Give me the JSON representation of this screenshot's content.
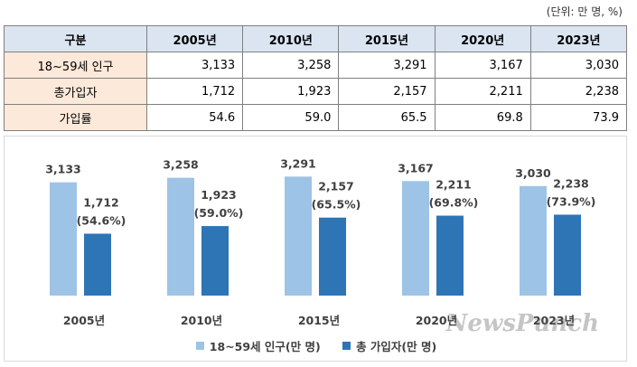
{
  "unit_note": "(단위: 만 명, %)",
  "table": {
    "header": [
      "구분",
      "2005년",
      "2010년",
      "2015년",
      "2020년",
      "2023년"
    ],
    "rows": [
      {
        "label": "18~59세 인구",
        "values": [
          "3,133",
          "3,258",
          "3,291",
          "3,167",
          "3,030"
        ]
      },
      {
        "label": "총가입자",
        "values": [
          "1,712",
          "1,923",
          "2,157",
          "2,211",
          "2,238"
        ]
      },
      {
        "label": "가입률",
        "values": [
          "54.6",
          "59.0",
          "65.5",
          "69.8",
          "73.9"
        ]
      }
    ]
  },
  "colors": {
    "population": "#9dc3e6",
    "subscribers": "#2e75b6",
    "header_bg": "#dbe5f1",
    "rowhead_bg": "#fde9d9"
  },
  "chart_data": {
    "type": "bar",
    "categories": [
      "2005년",
      "2010년",
      "2015년",
      "2020년",
      "2023년"
    ],
    "series": [
      {
        "name": "18~59세 인구(만 명)",
        "values": [
          3133,
          3258,
          3291,
          3167,
          3030
        ],
        "labels": [
          "3,133",
          "3,258",
          "3,291",
          "3,167",
          "3,030"
        ]
      },
      {
        "name": "총 가입자(만 명)",
        "values": [
          1712,
          1923,
          2157,
          2211,
          2238
        ],
        "labels": [
          "1,712",
          "1,923",
          "2,157",
          "2,211",
          "2,238"
        ],
        "sublabels": [
          "(54.6%)",
          "(59.0%)",
          "(65.5%)",
          "(69.8%)",
          "(73.9%)"
        ]
      }
    ],
    "legend_position": "bottom",
    "grid": false
  },
  "watermark": "NewsPunch"
}
